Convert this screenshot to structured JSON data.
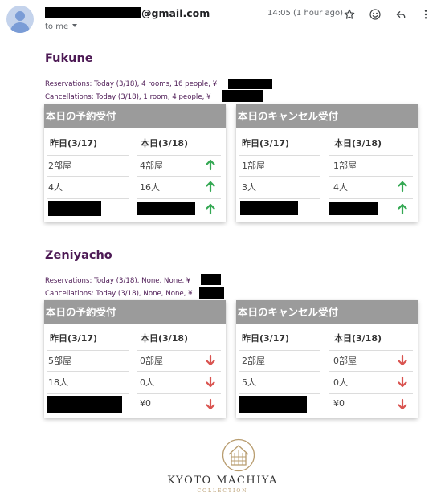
{
  "email": {
    "sender_domain": "@gmail.com",
    "recipient_label": "to me",
    "timestamp": "14:05 (1 hour ago)"
  },
  "properties": [
    {
      "name": "Fukune",
      "reservations_line": "Reservations: Today (3/18), 4 rooms, 16 people, ¥",
      "cancellations_line": "Cancellations: Today (3/18), 1 room, 4 people, ¥",
      "tables": [
        {
          "title": "本日の予約受付",
          "col_yesterday": "昨日(3/17)",
          "col_today": "本日(3/18)",
          "rows": [
            {
              "yesterday": "2部屋",
              "today": "4部屋",
              "trend": "up"
            },
            {
              "yesterday": "4人",
              "today": "16人",
              "trend": "up"
            },
            {
              "yesterday": "",
              "today": "",
              "trend": "up"
            }
          ]
        },
        {
          "title": "本日のキャンセル受付",
          "col_yesterday": "昨日(3/17)",
          "col_today": "本日(3/18)",
          "rows": [
            {
              "yesterday": "1部屋",
              "today": "1部屋",
              "trend": "none"
            },
            {
              "yesterday": "3人",
              "today": "4人",
              "trend": "up"
            },
            {
              "yesterday": "",
              "today": "",
              "trend": "up"
            }
          ]
        }
      ]
    },
    {
      "name": "Zeniyacho",
      "reservations_line": "Reservations: Today (3/18), None, None, ¥",
      "cancellations_line": "Cancellations: Today (3/18), None, None, ¥",
      "tables": [
        {
          "title": "本日の予約受付",
          "col_yesterday": "昨日(3/17)",
          "col_today": "本日(3/18)",
          "rows": [
            {
              "yesterday": "5部屋",
              "today": "0部屋",
              "trend": "down"
            },
            {
              "yesterday": "18人",
              "today": "0人",
              "trend": "down"
            },
            {
              "yesterday": "",
              "today": "¥0",
              "trend": "down"
            }
          ]
        },
        {
          "title": "本日のキャンセル受付",
          "col_yesterday": "昨日(3/17)",
          "col_today": "本日(3/18)",
          "rows": [
            {
              "yesterday": "2部屋",
              "today": "0部屋",
              "trend": "down"
            },
            {
              "yesterday": "5人",
              "today": "0人",
              "trend": "down"
            },
            {
              "yesterday": "",
              "today": "¥0",
              "trend": "down"
            }
          ]
        }
      ]
    }
  ],
  "footer": {
    "brand": "KYOTO MACHIYA",
    "brand_sub": "COLLECTION"
  },
  "icons": {
    "star": "star-icon",
    "emoji": "emoji-icon",
    "reply": "reply-icon",
    "more": "more-vert-icon",
    "trend_up": "arrow-up-icon",
    "trend_down": "arrow-down-icon"
  },
  "colors": {
    "section_title": "#4d1a55",
    "table_header": "#9b9b9b",
    "trend_up": "#34a853",
    "trend_down": "#d9534f",
    "brand_gold": "#b89c6e"
  }
}
